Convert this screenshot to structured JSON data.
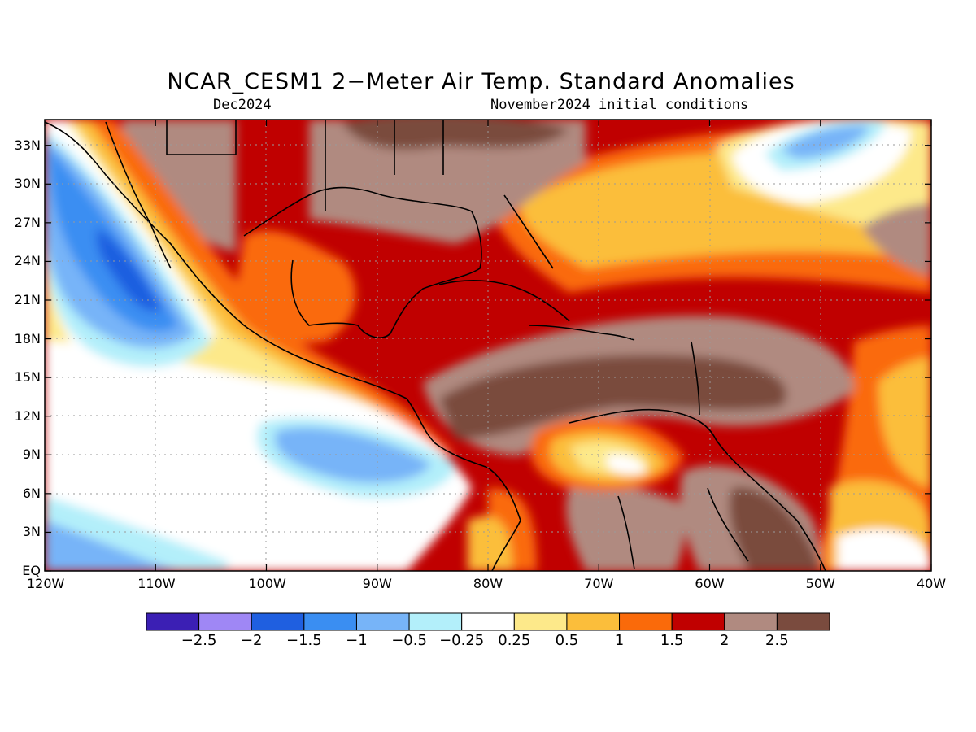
{
  "title": "NCAR_CESM1 2−Meter Air Temp. Standard Anomalies",
  "subtitle_left": "Dec2024",
  "subtitle_right": "November2024 initial conditions",
  "lat_labels": [
    "33N",
    "30N",
    "27N",
    "24N",
    "21N",
    "18N",
    "15N",
    "12N",
    "9N",
    "6N",
    "3N",
    "EQ"
  ],
  "lon_labels": [
    "120W",
    "110W",
    "100W",
    "90W",
    "80W",
    "70W",
    "60W",
    "50W",
    "40W"
  ],
  "map_extent": {
    "lon": [
      -120,
      -40
    ],
    "lat": [
      0,
      35
    ]
  },
  "legend": {
    "colors": [
      "#3b1fb4",
      "#9f87f5",
      "#1f5fe0",
      "#3a8ef2",
      "#77b4f8",
      "#b3effa",
      "#ffffff",
      "#fde98a",
      "#fbbe3b",
      "#fa6a0a",
      "#c00000",
      "#b08a80",
      "#7a4b3e"
    ],
    "labels": [
      "−2.5",
      "−2",
      "−1.5",
      "−1",
      "−0.5",
      "−0.25",
      "0.25",
      "0.5",
      "1",
      "1.5",
      "2",
      "2.5"
    ]
  }
}
